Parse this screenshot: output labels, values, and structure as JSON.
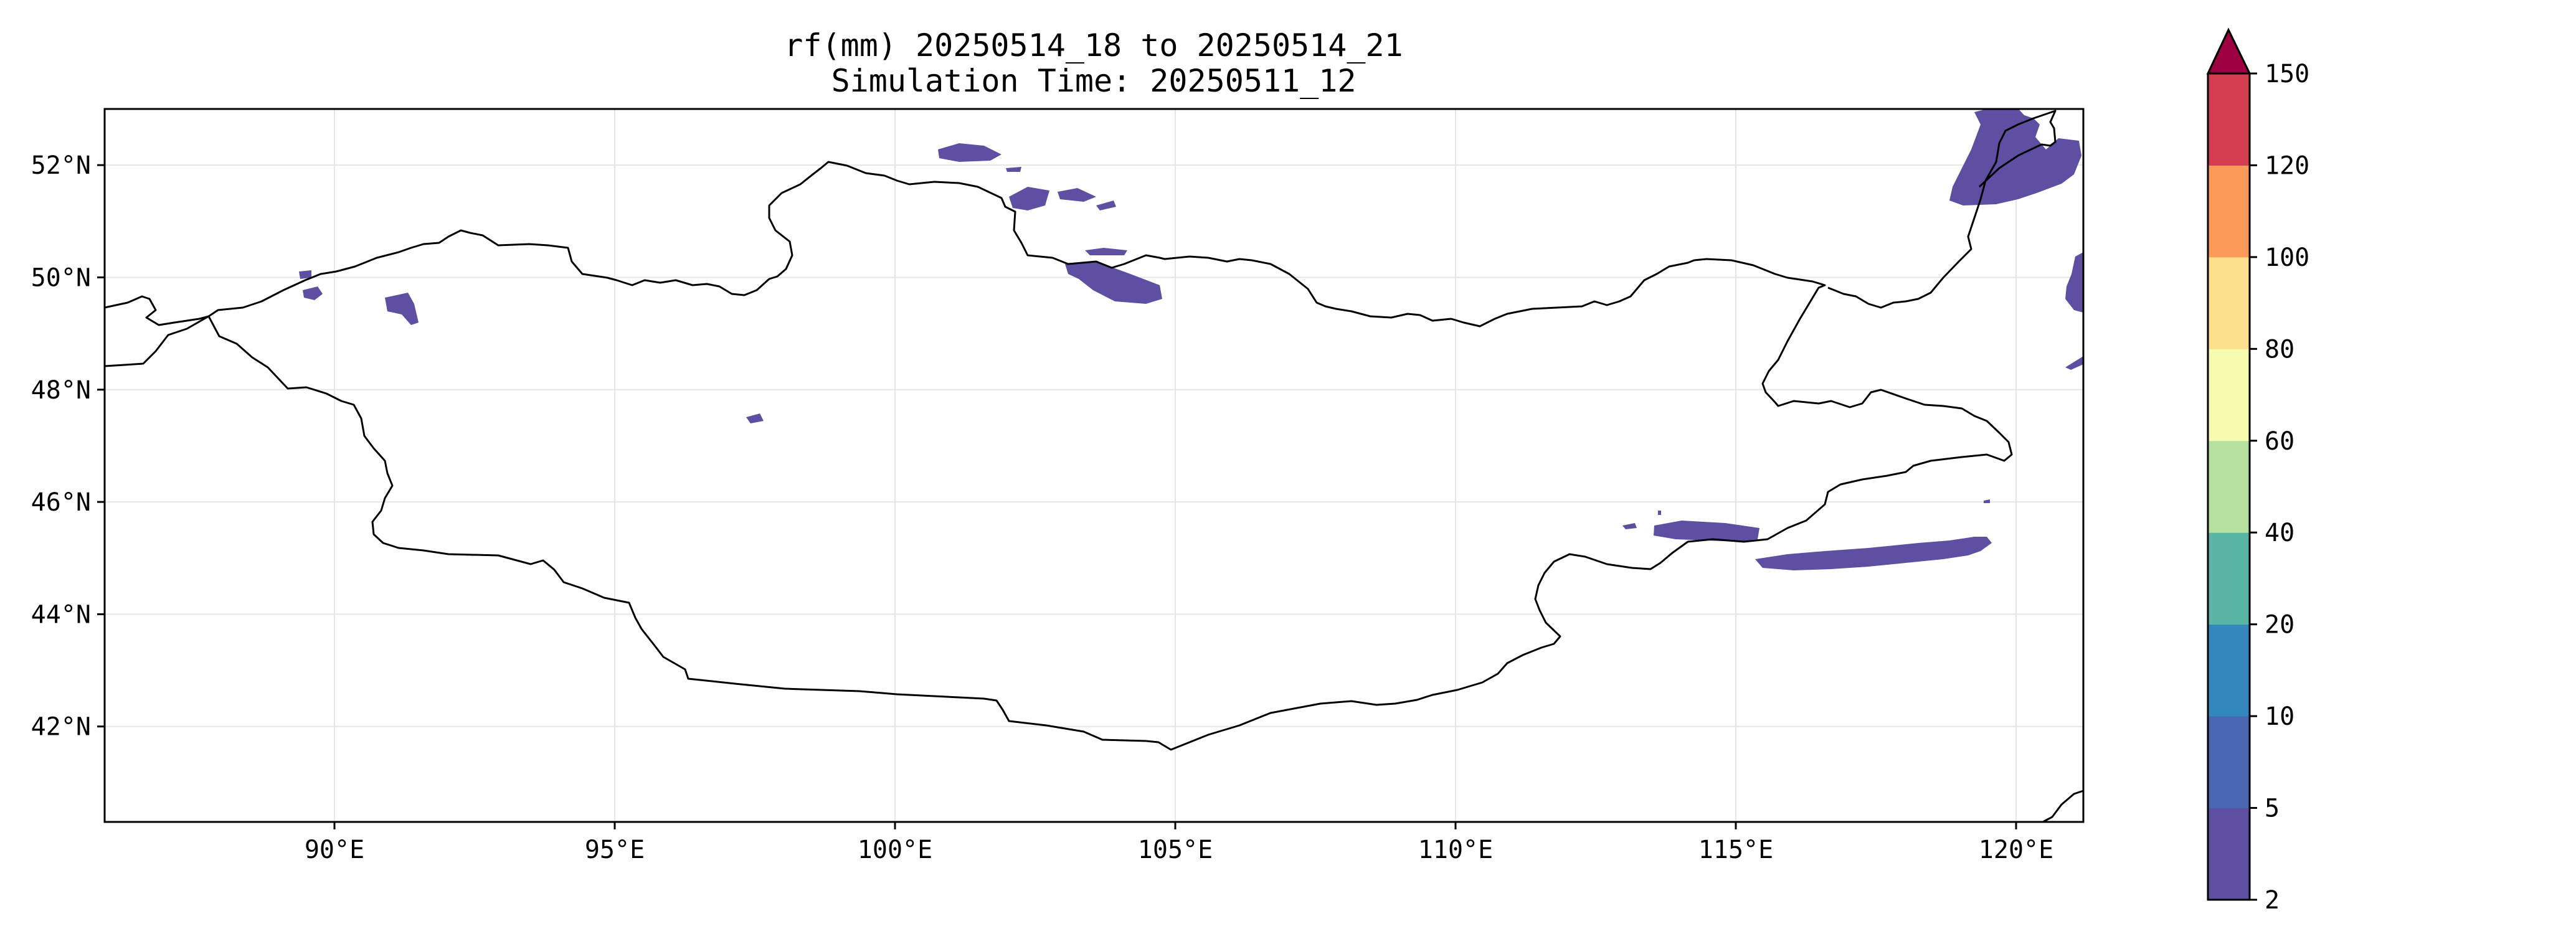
{
  "title": {
    "line1": "rf(mm) 20250514_18 to 20250514_21",
    "line2": "Simulation Time: 20250511_12"
  },
  "map": {
    "projection": "PlateCarree",
    "lon_range": [
      85.9,
      121.2
    ],
    "lat_range": [
      40.3,
      53.0
    ],
    "grid": true,
    "lon_ticks": [
      {
        "value": 90,
        "label": "90°E"
      },
      {
        "value": 95,
        "label": "95°E"
      },
      {
        "value": 100,
        "label": "100°E"
      },
      {
        "value": 105,
        "label": "105°E"
      },
      {
        "value": 110,
        "label": "110°E"
      },
      {
        "value": 115,
        "label": "115°E"
      },
      {
        "value": 120,
        "label": "120°E"
      }
    ],
    "lat_ticks": [
      {
        "value": 42,
        "label": "42°N"
      },
      {
        "value": 44,
        "label": "44°N"
      },
      {
        "value": 46,
        "label": "46°N"
      },
      {
        "value": 48,
        "label": "48°N"
      },
      {
        "value": 50,
        "label": "50°N"
      },
      {
        "value": 52,
        "label": "52°N"
      }
    ],
    "rain_color": "#5e4fa2"
  },
  "colorbar": {
    "levels": [
      {
        "label": "2"
      },
      {
        "label": "5"
      },
      {
        "label": "10"
      },
      {
        "label": "20"
      },
      {
        "label": "40"
      },
      {
        "label": "60"
      },
      {
        "label": "80"
      },
      {
        "label": "100"
      },
      {
        "label": "120"
      },
      {
        "label": "150"
      }
    ],
    "colors": [
      "#5e4fa2",
      "#4a66b1",
      "#3288bd",
      "#5bb5a6",
      "#b5e19e",
      "#f6fbb0",
      "#fde08b",
      "#fb9a59",
      "#d53e4f"
    ],
    "extend_color": "#9e0142",
    "extend": "max"
  }
}
